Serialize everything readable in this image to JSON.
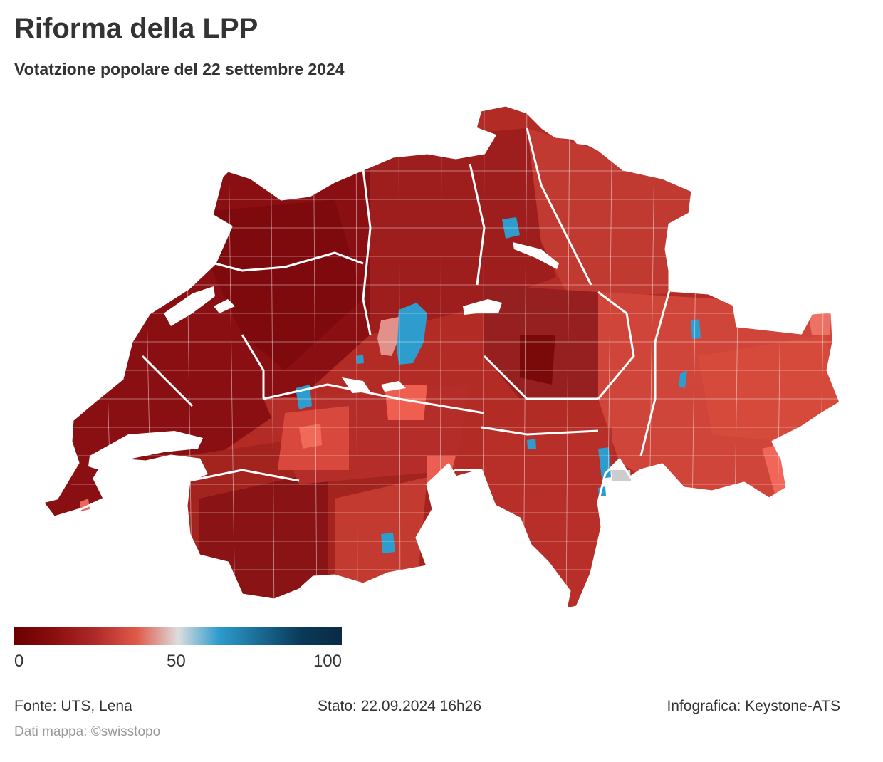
{
  "header": {
    "title": "Riforma della LPP",
    "subtitle": "Votatzione popolare del 22 settembre 2024"
  },
  "legend": {
    "min_label": "0",
    "mid_label": "50",
    "max_label": "100",
    "gradient": [
      "#6b0000",
      "#8b0f0f",
      "#b02a2a",
      "#e05a4a",
      "#dddddd",
      "#2e9ccd",
      "#1a6a95",
      "#0a3a58",
      "#0a2a45"
    ]
  },
  "footer": {
    "source": "Fonte: UTS, Lena",
    "status": "Stato: 22.09.2024 16h26",
    "credit": "Infografica: Keystone-ATS",
    "map_credit": "Dati mappa: ©swisstopo"
  },
  "colors": {
    "yes_dark": "#7a0a0a",
    "yes_mid": "#b32b25",
    "yes_light": "#d9453a",
    "neutral": "#cccccc",
    "no_mid": "#2e9ccd",
    "border_canton": "#ffffff",
    "text": "#333333",
    "muted": "#999999"
  }
}
